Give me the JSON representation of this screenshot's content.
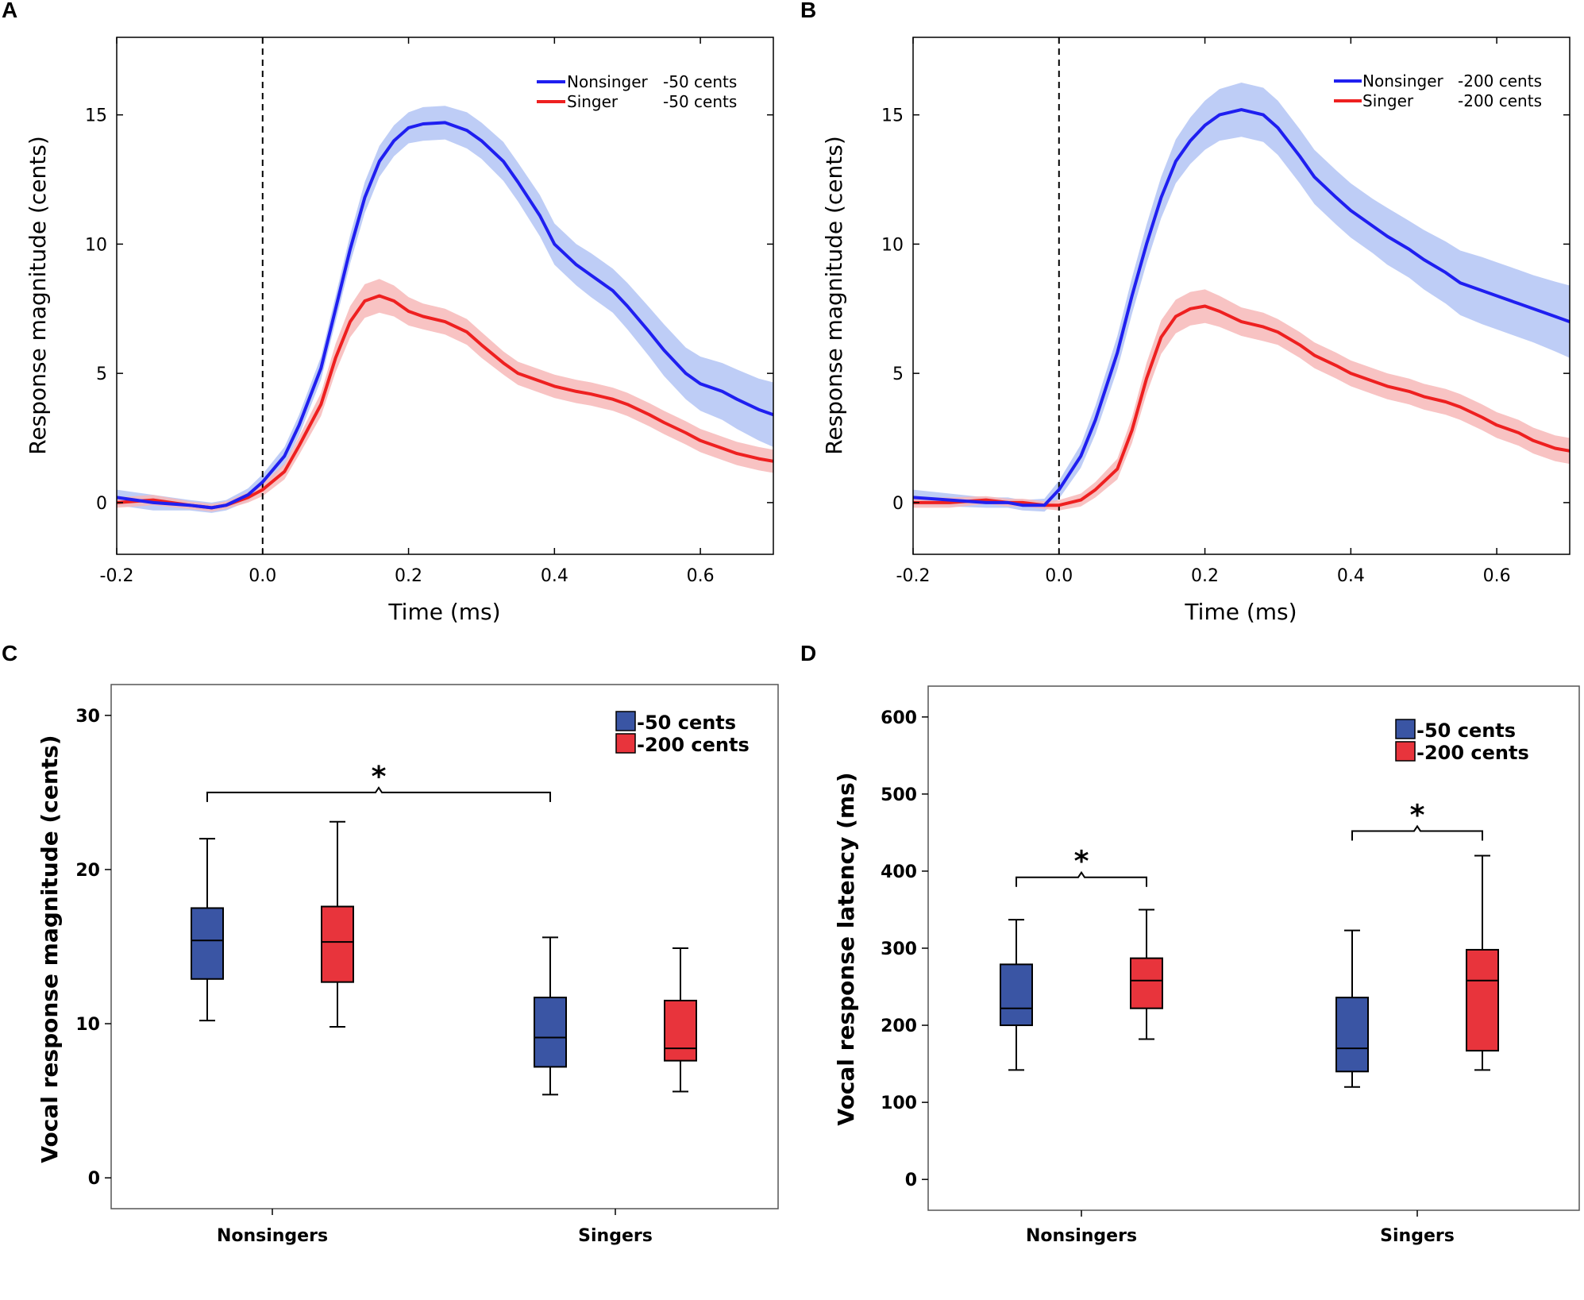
{
  "colors": {
    "nonsinger_line": "#1f1ff0",
    "nonsinger_band": "#b3c4f5",
    "singer_line": "#ee2020",
    "singer_band": "#f7b9b9",
    "box_blue": "#3a55a4",
    "box_red": "#e8343c"
  },
  "chart_data": [
    {
      "panel": "A",
      "type": "line",
      "xlabel": "Time (ms)",
      "ylabel": "Response magnitude (cents)",
      "xlim": [
        -0.2,
        0.7
      ],
      "ylim": [
        -2,
        18
      ],
      "xticks": [
        -0.2,
        0.0,
        0.2,
        0.4,
        0.6
      ],
      "xtick_labels": [
        "-0.2",
        "0.0",
        "0.2",
        "0.4",
        "0.6"
      ],
      "yticks": [
        0,
        5,
        10,
        15
      ],
      "ytick_labels": [
        "0",
        "5",
        "10",
        "15"
      ],
      "onset_line_x": 0.0,
      "legend_position": "top-right",
      "x": [
        -0.2,
        -0.15,
        -0.1,
        -0.07,
        -0.05,
        -0.02,
        0.0,
        0.03,
        0.05,
        0.08,
        0.1,
        0.12,
        0.14,
        0.16,
        0.18,
        0.2,
        0.22,
        0.25,
        0.28,
        0.3,
        0.33,
        0.35,
        0.38,
        0.4,
        0.43,
        0.45,
        0.48,
        0.5,
        0.53,
        0.55,
        0.58,
        0.6,
        0.63,
        0.65,
        0.68,
        0.7
      ],
      "series": [
        {
          "name": "Nonsinger",
          "label": "-50 cents",
          "color_key": "nonsinger",
          "values": [
            0.2,
            0.0,
            -0.1,
            -0.2,
            -0.1,
            0.3,
            0.8,
            1.8,
            3.0,
            5.2,
            7.5,
            9.8,
            11.8,
            13.2,
            14.0,
            14.5,
            14.65,
            14.7,
            14.4,
            14.0,
            13.2,
            12.4,
            11.1,
            10.0,
            9.2,
            8.8,
            8.2,
            7.6,
            6.6,
            5.9,
            5.0,
            4.6,
            4.3,
            4.0,
            3.6,
            3.4
          ],
          "ci": [
            0.3,
            0.3,
            0.2,
            0.2,
            0.2,
            0.25,
            0.3,
            0.35,
            0.4,
            0.45,
            0.5,
            0.55,
            0.6,
            0.6,
            0.6,
            0.6,
            0.65,
            0.65,
            0.7,
            0.7,
            0.75,
            0.75,
            0.8,
            0.8,
            0.8,
            0.85,
            0.85,
            0.9,
            0.95,
            1.0,
            1.0,
            1.05,
            1.1,
            1.15,
            1.2,
            1.25
          ]
        },
        {
          "name": "Singer",
          "label": "-50 cents",
          "color_key": "singer",
          "values": [
            0.0,
            0.1,
            -0.1,
            -0.2,
            -0.1,
            0.2,
            0.5,
            1.2,
            2.2,
            3.8,
            5.6,
            7.0,
            7.8,
            8.0,
            7.8,
            7.4,
            7.2,
            7.0,
            6.6,
            6.1,
            5.4,
            5.0,
            4.7,
            4.5,
            4.3,
            4.2,
            4.0,
            3.8,
            3.4,
            3.1,
            2.7,
            2.4,
            2.1,
            1.9,
            1.7,
            1.6
          ],
          "ci": [
            0.2,
            0.2,
            0.15,
            0.15,
            0.15,
            0.2,
            0.25,
            0.3,
            0.35,
            0.45,
            0.55,
            0.6,
            0.65,
            0.65,
            0.6,
            0.55,
            0.5,
            0.5,
            0.5,
            0.5,
            0.45,
            0.45,
            0.45,
            0.45,
            0.45,
            0.45,
            0.45,
            0.45,
            0.45,
            0.45,
            0.45,
            0.45,
            0.45,
            0.45,
            0.45,
            0.45
          ]
        }
      ]
    },
    {
      "panel": "B",
      "type": "line",
      "xlabel": "Time (ms)",
      "ylabel": "Response magnitude (cents)",
      "xlim": [
        -0.2,
        0.7
      ],
      "ylim": [
        -2,
        18
      ],
      "xticks": [
        -0.2,
        0.0,
        0.2,
        0.4,
        0.6
      ],
      "xtick_labels": [
        "-0.2",
        "0.0",
        "0.2",
        "0.4",
        "0.6"
      ],
      "yticks": [
        0,
        5,
        10,
        15
      ],
      "ytick_labels": [
        "0",
        "5",
        "10",
        "15"
      ],
      "onset_line_x": 0.0,
      "legend_position": "top-right",
      "x": [
        -0.2,
        -0.15,
        -0.1,
        -0.07,
        -0.05,
        -0.02,
        0.0,
        0.03,
        0.05,
        0.08,
        0.1,
        0.12,
        0.14,
        0.16,
        0.18,
        0.2,
        0.22,
        0.25,
        0.28,
        0.3,
        0.33,
        0.35,
        0.38,
        0.4,
        0.43,
        0.45,
        0.48,
        0.5,
        0.53,
        0.55,
        0.58,
        0.6,
        0.63,
        0.65,
        0.68,
        0.7
      ],
      "series": [
        {
          "name": "Nonsinger",
          "label": "-200 cents",
          "color_key": "nonsinger",
          "values": [
            0.2,
            0.1,
            0.0,
            0.0,
            -0.1,
            -0.1,
            0.5,
            1.8,
            3.2,
            5.8,
            8.0,
            10.0,
            11.8,
            13.2,
            14.0,
            14.6,
            15.0,
            15.2,
            15.0,
            14.5,
            13.4,
            12.6,
            11.8,
            11.3,
            10.7,
            10.3,
            9.8,
            9.4,
            8.9,
            8.5,
            8.2,
            8.0,
            7.7,
            7.5,
            7.2,
            7.0
          ],
          "ci": [
            0.3,
            0.25,
            0.2,
            0.2,
            0.2,
            0.25,
            0.35,
            0.45,
            0.55,
            0.65,
            0.7,
            0.75,
            0.8,
            0.85,
            0.9,
            0.95,
            1.0,
            1.05,
            1.05,
            1.05,
            1.05,
            1.05,
            1.05,
            1.05,
            1.05,
            1.1,
            1.1,
            1.15,
            1.2,
            1.25,
            1.3,
            1.3,
            1.3,
            1.3,
            1.35,
            1.4
          ]
        },
        {
          "name": "Singer",
          "label": "-200 cents",
          "color_key": "singer",
          "values": [
            0.0,
            0.0,
            0.1,
            0.0,
            0.0,
            -0.1,
            -0.1,
            0.1,
            0.5,
            1.3,
            2.8,
            4.8,
            6.4,
            7.2,
            7.5,
            7.6,
            7.4,
            7.0,
            6.8,
            6.6,
            6.1,
            5.7,
            5.3,
            5.0,
            4.7,
            4.5,
            4.3,
            4.1,
            3.9,
            3.7,
            3.3,
            3.0,
            2.7,
            2.4,
            2.1,
            2.0
          ],
          "ci": [
            0.2,
            0.2,
            0.15,
            0.15,
            0.15,
            0.15,
            0.2,
            0.25,
            0.3,
            0.4,
            0.5,
            0.6,
            0.65,
            0.65,
            0.65,
            0.65,
            0.6,
            0.55,
            0.55,
            0.5,
            0.5,
            0.5,
            0.5,
            0.5,
            0.5,
            0.5,
            0.5,
            0.5,
            0.5,
            0.5,
            0.5,
            0.5,
            0.5,
            0.5,
            0.5,
            0.5
          ]
        }
      ]
    },
    {
      "panel": "C",
      "type": "box",
      "ylabel": "Vocal response magnitude (cents)",
      "ylim": [
        -2,
        32
      ],
      "yticks": [
        0,
        10,
        20,
        30
      ],
      "ytick_labels": [
        "0",
        "10",
        "20",
        "30"
      ],
      "categories": [
        "Nonsingers",
        "Singers"
      ],
      "legend_position": "top-right",
      "legend": [
        {
          "label": "-50 cents",
          "color_key": "box_blue"
        },
        {
          "label": "-200 cents",
          "color_key": "box_red"
        }
      ],
      "boxes": [
        {
          "group": "Nonsingers",
          "condition": "-50 cents",
          "color_key": "box_blue",
          "min": 10.2,
          "q1": 12.9,
          "median": 15.4,
          "q3": 17.5,
          "max": 22.0
        },
        {
          "group": "Nonsingers",
          "condition": "-200 cents",
          "color_key": "box_red",
          "min": 9.8,
          "q1": 12.7,
          "median": 15.3,
          "q3": 17.6,
          "max": 23.1
        },
        {
          "group": "Singers",
          "condition": "-50 cents",
          "color_key": "box_blue",
          "min": 5.4,
          "q1": 7.2,
          "median": 9.1,
          "q3": 11.7,
          "max": 15.6
        },
        {
          "group": "Singers",
          "condition": "-200 cents",
          "color_key": "box_red",
          "min": 5.6,
          "q1": 7.6,
          "median": 8.4,
          "q3": 11.5,
          "max": 14.9
        }
      ],
      "significance": [
        {
          "from_box": 0,
          "to_box": 2,
          "level": 25.0,
          "label": "*"
        }
      ]
    },
    {
      "panel": "D",
      "type": "box",
      "ylabel": "Vocal response latency (ms)",
      "ylim": [
        -40,
        640
      ],
      "yticks": [
        0,
        100,
        200,
        300,
        400,
        500,
        600
      ],
      "ytick_labels": [
        "0",
        "100",
        "200",
        "300",
        "400",
        "500",
        "600"
      ],
      "categories": [
        "Nonsingers",
        "Singers"
      ],
      "legend_position": "top-right",
      "legend": [
        {
          "label": "-50 cents",
          "color_key": "box_blue"
        },
        {
          "label": "-200 cents",
          "color_key": "box_red"
        }
      ],
      "boxes": [
        {
          "group": "Nonsingers",
          "condition": "-50 cents",
          "color_key": "box_blue",
          "min": 142,
          "q1": 200,
          "median": 222,
          "q3": 279,
          "max": 337
        },
        {
          "group": "Nonsingers",
          "condition": "-200 cents",
          "color_key": "box_red",
          "min": 182,
          "q1": 222,
          "median": 258,
          "q3": 287,
          "max": 350
        },
        {
          "group": "Singers",
          "condition": "-50 cents",
          "color_key": "box_blue",
          "min": 120,
          "q1": 140,
          "median": 170,
          "q3": 236,
          "max": 323
        },
        {
          "group": "Singers",
          "condition": "-200 cents",
          "color_key": "box_red",
          "min": 142,
          "q1": 167,
          "median": 258,
          "q3": 298,
          "max": 420
        }
      ],
      "significance": [
        {
          "from_box": 0,
          "to_box": 1,
          "level": 392,
          "label": "*"
        },
        {
          "from_box": 2,
          "to_box": 3,
          "level": 452,
          "label": "*"
        }
      ]
    }
  ]
}
